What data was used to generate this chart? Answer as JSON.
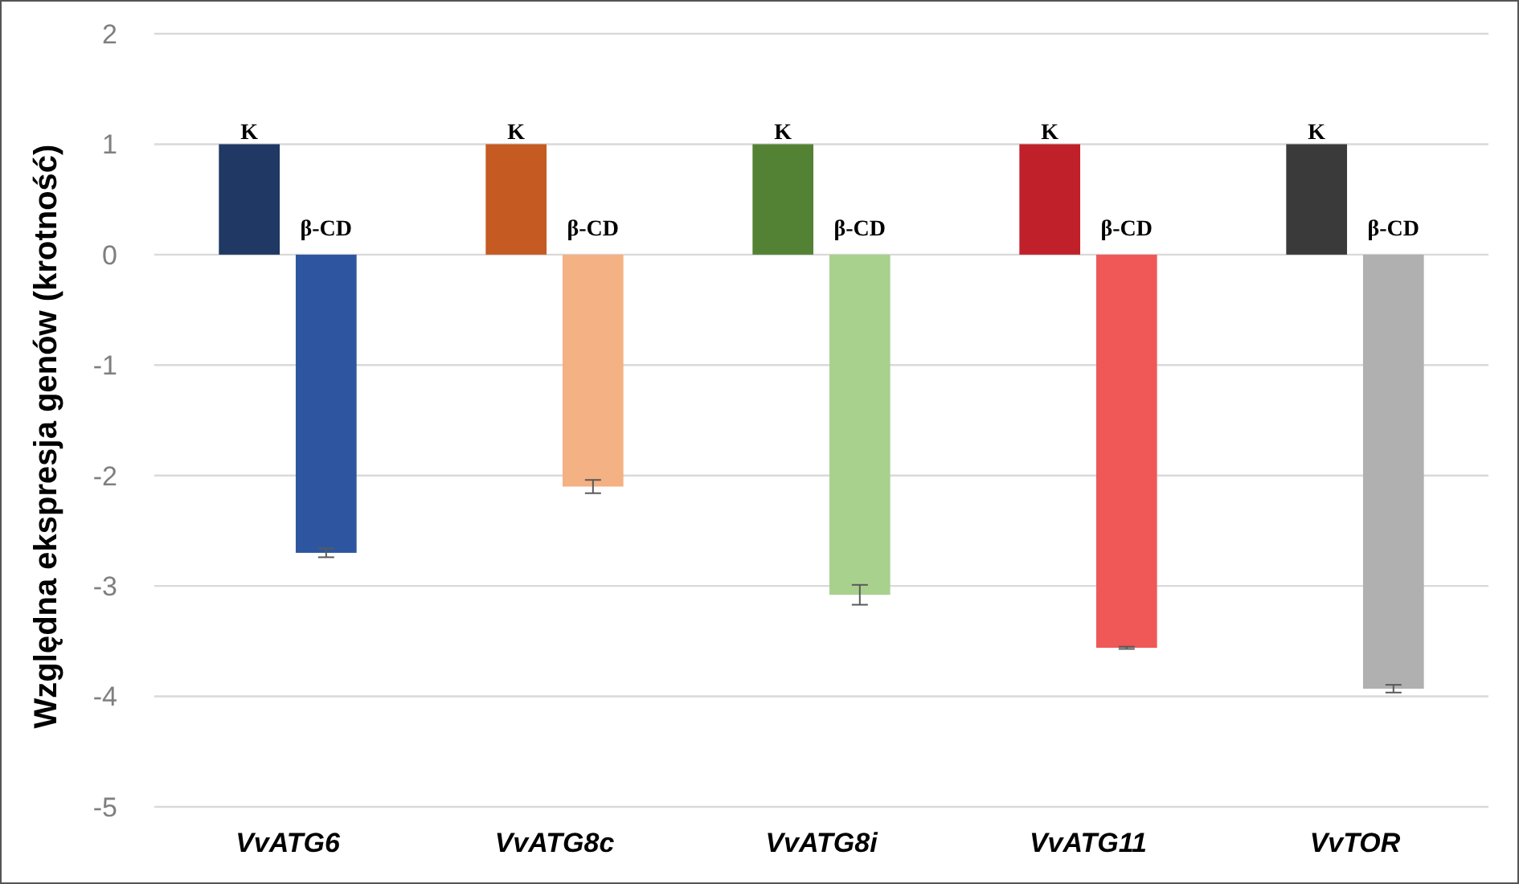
{
  "chart_data": {
    "type": "bar",
    "ylabel": "Względna ekspresja genów (krotność)",
    "categories": [
      "VvATG6",
      "VvATG8c",
      "VvATG8i",
      "VvATG11",
      "VvTOR"
    ],
    "series": [
      {
        "name": "K",
        "colors": [
          "#1f3864",
          "#c55a22",
          "#548235",
          "#c0202a",
          "#3a3a3a"
        ],
        "values": [
          1,
          1,
          1,
          1,
          1
        ]
      },
      {
        "name": "β-CD",
        "colors": [
          "#2e56a0",
          "#f4b183",
          "#a9d18e",
          "#f05858",
          "#b0b0b0"
        ],
        "values": [
          -2.7,
          -2.1,
          -3.08,
          -3.56,
          -3.93
        ],
        "errors": [
          0.04,
          0.06,
          0.09,
          0.01,
          0.035
        ]
      }
    ],
    "ylim": [
      -5,
      2
    ],
    "yticks": [
      -5,
      -4,
      -3,
      -2,
      -1,
      0,
      1,
      2
    ],
    "grid": "y"
  }
}
